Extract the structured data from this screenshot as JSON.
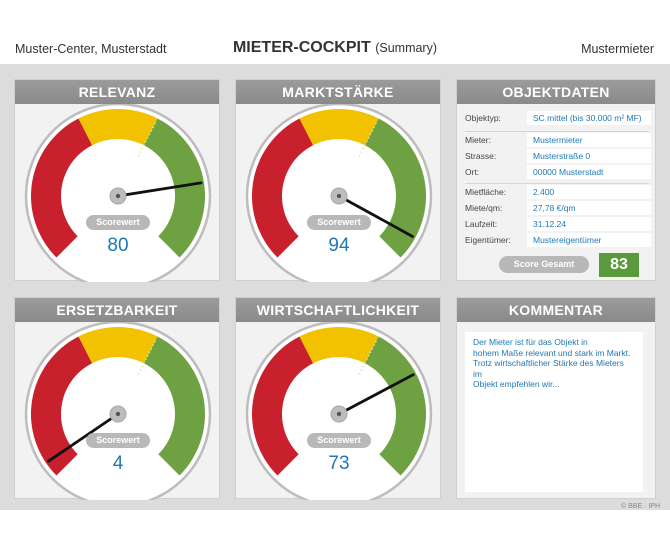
{
  "header": {
    "left": "Muster-Center, Musterstadt",
    "title": "MIETER-COCKPIT",
    "subtitle": "(Summary)",
    "right": "Mustermieter"
  },
  "gauges": [
    {
      "title": "RELEVANZ",
      "score_label": "Scorewert",
      "value": "80",
      "score": 80
    },
    {
      "title": "MARKTSTÄRKE",
      "score_label": "Scorewert",
      "value": "94",
      "score": 94
    },
    {
      "title": "ERSETZBARKEIT",
      "score_label": "Scorewert",
      "value": "4",
      "score": 4
    },
    {
      "title": "WIRTSCHAFTLICHKEIT",
      "score_label": "Scorewert",
      "value": "73",
      "score": 73
    }
  ],
  "gauge_colors": {
    "red": "#c8202c",
    "yellow": "#f2c200",
    "green": "#6ea142",
    "needle": "#111111"
  },
  "objektdaten": {
    "title": "OBJEKTDATEN",
    "rows": [
      {
        "label": "Objektyp:",
        "value": "SC mittel (bis 30.000 m² MF)"
      },
      {
        "label": "Mieter:",
        "value": "Mustermieter"
      },
      {
        "label": "Strasse:",
        "value": "Musterstraße 0"
      },
      {
        "label": "Ort:",
        "value": "00000 Musterstadt"
      },
      {
        "label": "Mietfläche:",
        "value": "2.400"
      },
      {
        "label": "Miete/qm:",
        "value": "27,78 €/qm"
      },
      {
        "label": "Laufzeit:",
        "value": "31.12.24"
      },
      {
        "label": "Eigentümer:",
        "value": "Mustereigentümer"
      }
    ],
    "score_label": "Score Gesamt",
    "score_value": "83"
  },
  "kommentar": {
    "title": "KOMMENTAR",
    "line1": "Der Mieter ist für das Objekt in",
    "line2": "hohem Maße relevant und stark im Markt.",
    "line3": "Trotz wirtschaftlicher Stärke des Mieters im",
    "line4": "Objekt empfehlen wir..."
  },
  "footer": {
    "copyright": "© BBE · IPH"
  }
}
